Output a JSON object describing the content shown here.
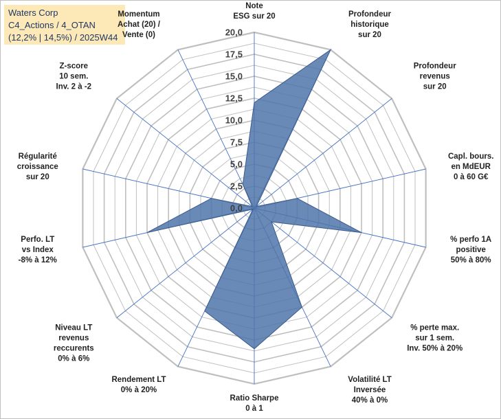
{
  "title_box": {
    "line1": "Waters Corp",
    "line2": "C4_Actions / 4_OTAN",
    "line3": "(12,2% | 14,5%) / 2025W44"
  },
  "chart_data": {
    "type": "radar",
    "rmin": 0,
    "rmax": 20,
    "tick_step": 2.5,
    "tick_labels": [
      "0,0",
      "2,5",
      "5,0",
      "7,5",
      "10,0",
      "12,5",
      "15,0",
      "17,5",
      "20,0"
    ],
    "categories": [
      [
        "Note",
        "ESG sur 20"
      ],
      [
        "Profondeur",
        "historique",
        "sur 20"
      ],
      [
        "Profondeur",
        "revenus",
        "sur 20"
      ],
      [
        "Capl. bours.",
        "en MdEUR",
        "0 à 60 G€"
      ],
      [
        "% perfo 1A",
        "positive",
        "50% à 80%"
      ],
      [
        "% perte max.",
        "sur 1 sem.",
        "Inv. 50% à 20%"
      ],
      [
        "Volatilité LT",
        "Inversée",
        "40% à 0%"
      ],
      [
        "Ratio Sharpe",
        "0 à 1"
      ],
      [
        "Rendement LT",
        "0% à 20%"
      ],
      [
        "Niveau LT",
        "revenus",
        "reccurents",
        "0% à 6%"
      ],
      [
        "Perfo. LT",
        "vs Index",
        "-8% à 12%"
      ],
      [
        "Régularité",
        "croissance",
        "sur 20"
      ],
      [
        "Z-score",
        "10 sem.",
        "Inv. 2 à -2"
      ],
      [
        "Momentum",
        "Achat (20) /",
        "Vente (0)"
      ]
    ],
    "values": [
      12,
      20,
      0.3,
      5,
      12.5,
      2.5,
      12.5,
      16,
      13,
      0.2,
      12.5,
      5,
      0.3,
      3
    ],
    "colors": {
      "fill": "#4f74a9",
      "stroke": "#3a5a8c",
      "grid": "#bfbfbf",
      "spoke": "#4472c4"
    },
    "grid": true,
    "legend": "none"
  }
}
